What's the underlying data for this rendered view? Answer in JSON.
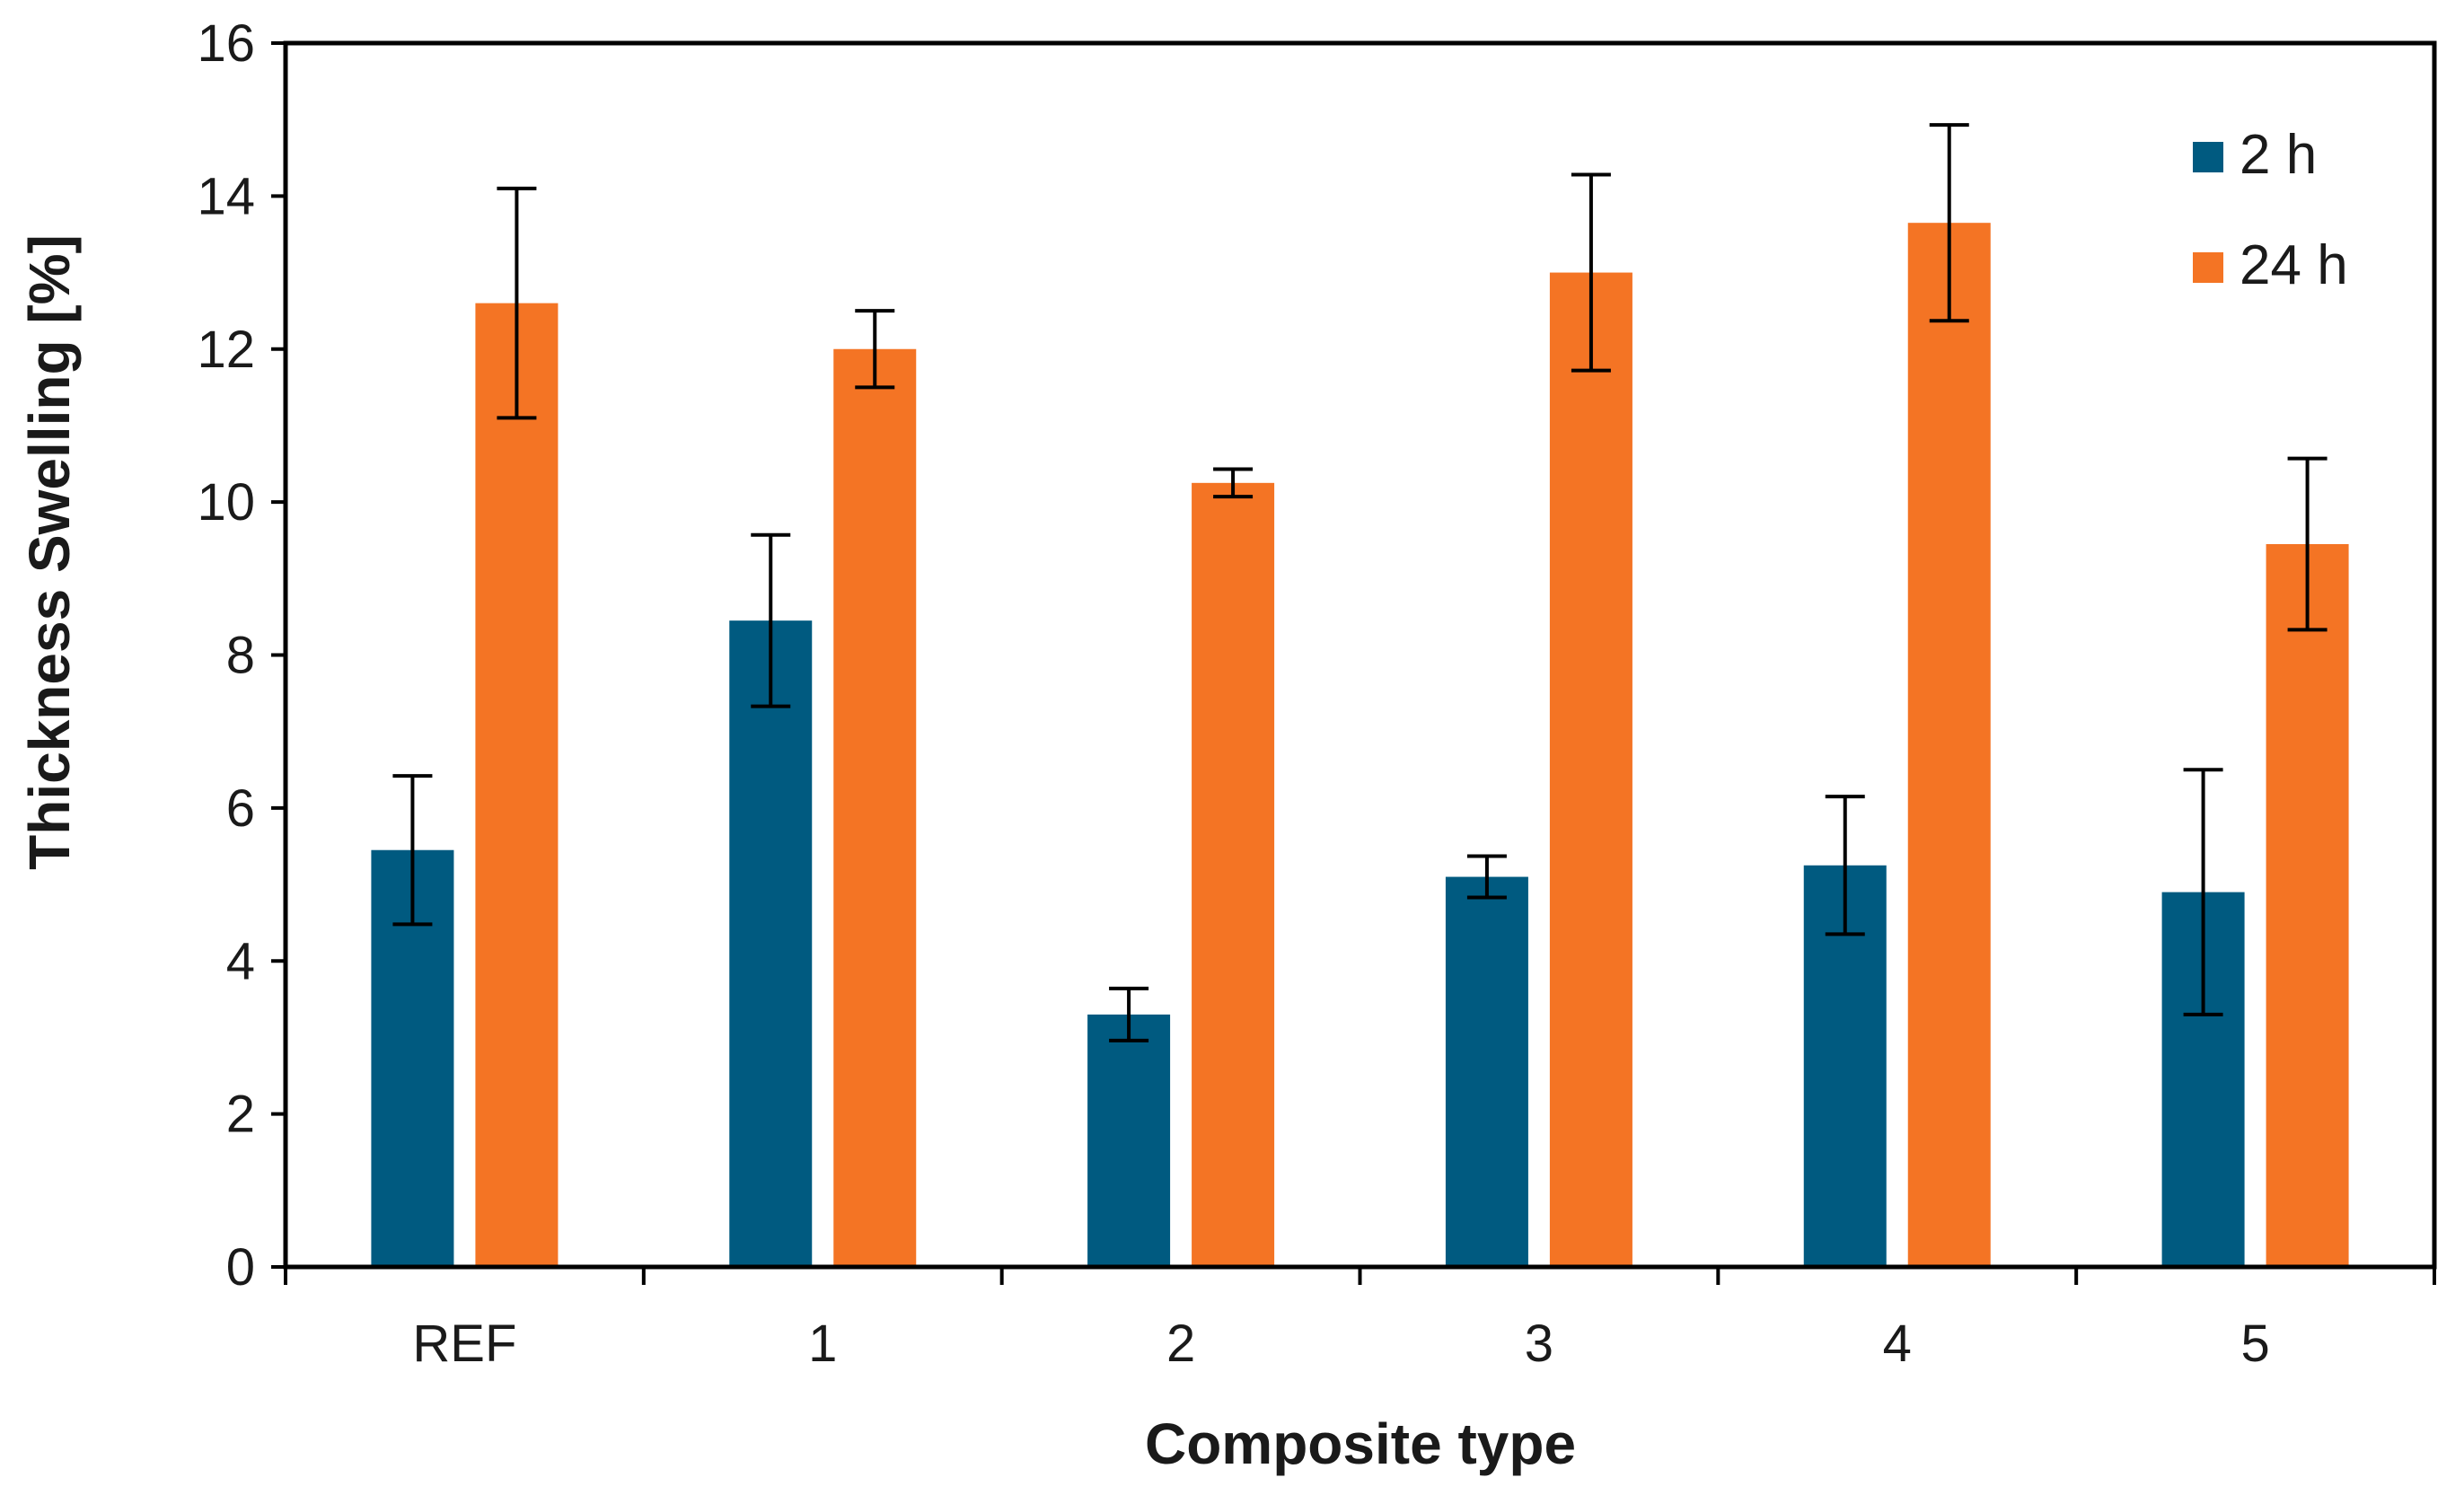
{
  "chart_data": {
    "type": "bar",
    "title": "",
    "xlabel": "Composite type",
    "ylabel": "Thickness Swelling  [%]",
    "ylim": [
      0,
      16
    ],
    "yticks": [
      0,
      2,
      4,
      6,
      8,
      10,
      12,
      14,
      16
    ],
    "categories": [
      "REF",
      "1",
      "2",
      "3",
      "4",
      "5"
    ],
    "legend_position": "top-right",
    "grid": false,
    "series": [
      {
        "name": "2 h",
        "color": "#005a80",
        "values": [
          5.45,
          8.45,
          3.3,
          5.1,
          5.25,
          4.9
        ],
        "errors": [
          0.97,
          1.12,
          0.34,
          0.27,
          0.9,
          1.6
        ]
      },
      {
        "name": "24 h",
        "color": "#f47424",
        "values": [
          12.6,
          12.0,
          10.25,
          13.0,
          13.65,
          9.45
        ],
        "errors": [
          1.5,
          0.5,
          0.18,
          1.28,
          1.28,
          1.12
        ]
      }
    ]
  }
}
